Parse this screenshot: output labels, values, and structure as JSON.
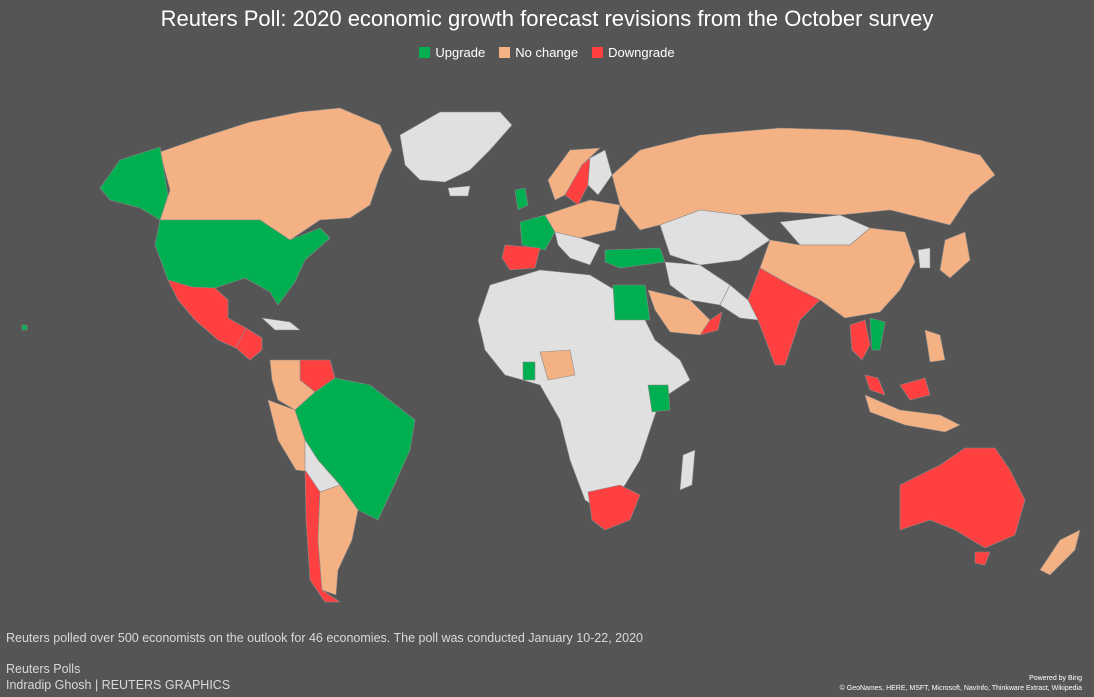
{
  "title": "Reuters Poll: 2020 economic growth forecast revisions from the October survey",
  "legend": [
    {
      "label": "Upgrade",
      "color": "#00b050"
    },
    {
      "label": "No change",
      "color": "#f4b183"
    },
    {
      "label": "Downgrade",
      "color": "#ff4040"
    }
  ],
  "colors": {
    "background": "#555555",
    "no_data": "#e0e0e0",
    "upgrade": "#00b050",
    "no_change": "#f4b183",
    "downgrade": "#ff4040"
  },
  "footer": {
    "note": "Reuters polled over 500 economists on the outlook for 46 economies. The poll was conducted January 10-22, 2020",
    "source_line1": "Reuters Polls",
    "source_line2": "Indradip Ghosh | REUTERS GRAPHICS",
    "powered_by": "Powered by Bing",
    "credits": "© GeoNames, HERE, MSFT, Microsoft, NavInfo, Thinkware Extract, Wikipedia"
  }
}
